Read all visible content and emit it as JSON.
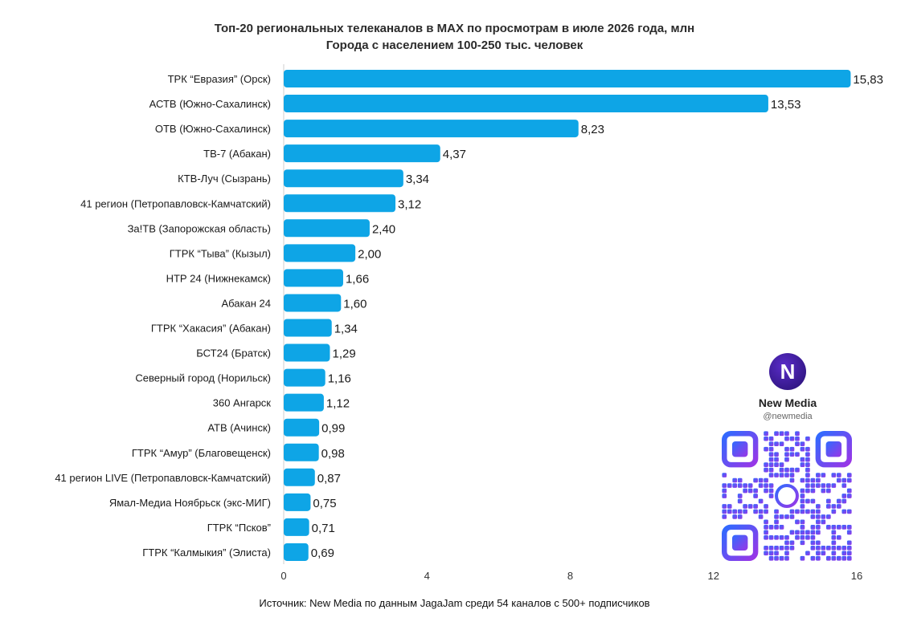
{
  "title": "Топ-20 региональных телеканалов в MAX по просмотрам в июле 2026 года, млн",
  "subtitle": "Города с населением 100-250 тыс. человек",
  "source": "Источник: New Media по данным JagaJam среди 54 каналов с 500+ подписчиков",
  "brand": {
    "logo_text": "N",
    "name": "New Media",
    "handle": "@newmedia"
  },
  "colors": {
    "bar": "#0ea5e6",
    "text": "#1a1a1a",
    "axis": "#cfcfcf",
    "qr_start": "#2f6bff",
    "qr_end": "#9b35e6"
  },
  "chart_data": {
    "type": "bar",
    "orientation": "horizontal",
    "categories": [
      "ТРК “Евразия” (Орск)",
      "АСТВ (Южно-Сахалинск)",
      "ОТВ (Южно-Сахалинск)",
      "ТВ-7 (Абакан)",
      "КТВ-Луч (Сызрань)",
      "41 регион (Петропавловск-Камчатский)",
      "За!ТВ (Запорожская область)",
      "ГТРК “Тыва” (Кызыл)",
      "НТР 24 (Нижнекамск)",
      "Абакан 24",
      "ГТРК “Хакасия” (Абакан)",
      "БСТ24 (Братск)",
      "Северный город (Норильск)",
      "360 Ангарск",
      "АТВ (Ачинск)",
      "ГТРК “Амур” (Благовещенск)",
      "41 регион LIVE (Петропавловск-Камчатский)",
      "Ямал-Медиа Ноябрьск (экс-МИГ)",
      "ГТРК “Псков”",
      "ГТРК “Калмыкия” (Элиста)"
    ],
    "values": [
      15.83,
      13.53,
      8.23,
      4.37,
      3.34,
      3.12,
      2.4,
      2.0,
      1.66,
      1.6,
      1.34,
      1.29,
      1.16,
      1.12,
      0.99,
      0.98,
      0.87,
      0.75,
      0.71,
      0.69
    ],
    "value_labels": [
      "15,83",
      "13,53",
      "8,23",
      "4,37",
      "3,34",
      "3,12",
      "2,40",
      "2,00",
      "1,66",
      "1,60",
      "1,34",
      "1,29",
      "1,16",
      "1,12",
      "0,99",
      "0,98",
      "0,87",
      "0,75",
      "0,71",
      "0,69"
    ],
    "xlim": [
      0,
      16
    ],
    "xticks": [
      0,
      4,
      8,
      12,
      16
    ],
    "xlabel": "",
    "ylabel": "",
    "grid": false
  }
}
